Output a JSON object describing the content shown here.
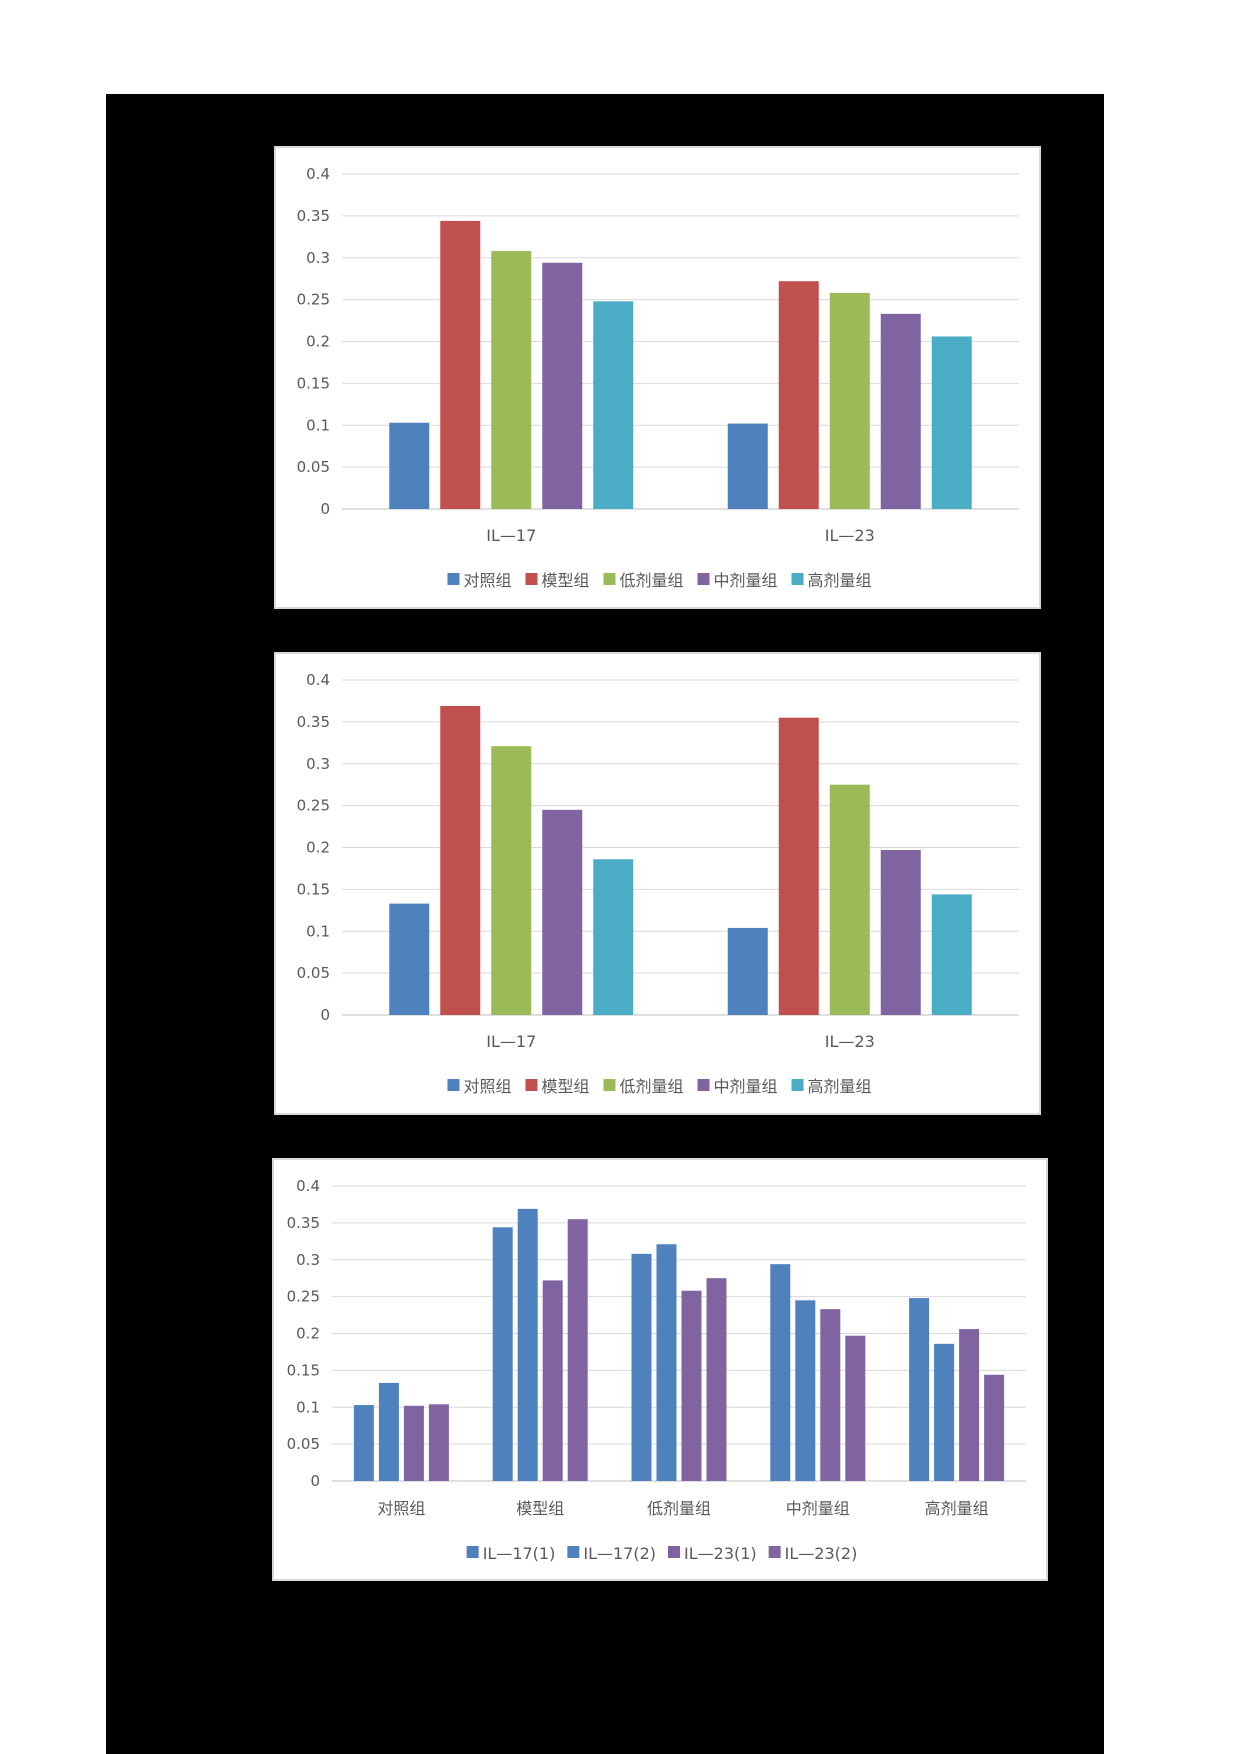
{
  "chart_data": [
    {
      "type": "bar",
      "categories": [
        "IL—17",
        "IL—23"
      ],
      "series": [
        {
          "name": "对照组",
          "color": "#4F81BD",
          "values": [
            0.103,
            0.102
          ]
        },
        {
          "name": "模型组",
          "color": "#C0504D",
          "values": [
            0.344,
            0.272
          ]
        },
        {
          "name": "低剂量组",
          "color": "#9BBB59",
          "values": [
            0.308,
            0.258
          ]
        },
        {
          "name": "中剂量组",
          "color": "#8064A2",
          "values": [
            0.294,
            0.233
          ]
        },
        {
          "name": "高剂量组",
          "color": "#4BACC6",
          "values": [
            0.248,
            0.206
          ]
        }
      ],
      "y_ticks": [
        "0",
        "0.05",
        "0.1",
        "0.15",
        "0.2",
        "0.25",
        "0.3",
        "0.35",
        "0.4"
      ],
      "ylim": [
        0,
        0.4
      ],
      "grid": true,
      "legend_position": "bottom"
    },
    {
      "type": "bar",
      "categories": [
        "IL—17",
        "IL—23"
      ],
      "series": [
        {
          "name": "对照组",
          "color": "#4F81BD",
          "values": [
            0.133,
            0.104
          ]
        },
        {
          "name": "模型组",
          "color": "#C0504D",
          "values": [
            0.369,
            0.355
          ]
        },
        {
          "name": "低剂量组",
          "color": "#9BBB59",
          "values": [
            0.321,
            0.275
          ]
        },
        {
          "name": "中剂量组",
          "color": "#8064A2",
          "values": [
            0.245,
            0.197
          ]
        },
        {
          "name": "高剂量组",
          "color": "#4BACC6",
          "values": [
            0.186,
            0.144
          ]
        }
      ],
      "y_ticks": [
        "0",
        "0.05",
        "0.1",
        "0.15",
        "0.2",
        "0.25",
        "0.3",
        "0.35",
        "0.4"
      ],
      "ylim": [
        0,
        0.4
      ],
      "grid": true,
      "legend_position": "bottom"
    },
    {
      "type": "bar",
      "categories": [
        "对照组",
        "模型组",
        "低剂量组",
        "中剂量组",
        "高剂量组"
      ],
      "series": [
        {
          "name": "IL—17(1)",
          "color": "#4F81BD",
          "values": [
            0.103,
            0.344,
            0.308,
            0.294,
            0.248
          ]
        },
        {
          "name": "IL—17(2)",
          "color": "#4F81BD",
          "values": [
            0.133,
            0.369,
            0.321,
            0.245,
            0.186
          ]
        },
        {
          "name": "IL—23(1)",
          "color": "#8064A2",
          "values": [
            0.102,
            0.272,
            0.258,
            0.233,
            0.206
          ]
        },
        {
          "name": "IL—23(2)",
          "color": "#8064A2",
          "values": [
            0.104,
            0.355,
            0.275,
            0.197,
            0.144
          ]
        }
      ],
      "y_ticks": [
        "0",
        "0.05",
        "0.1",
        "0.15",
        "0.2",
        "0.25",
        "0.3",
        "0.35",
        "0.4"
      ],
      "ylim": [
        0,
        0.4
      ],
      "grid": true,
      "legend_position": "bottom"
    }
  ]
}
